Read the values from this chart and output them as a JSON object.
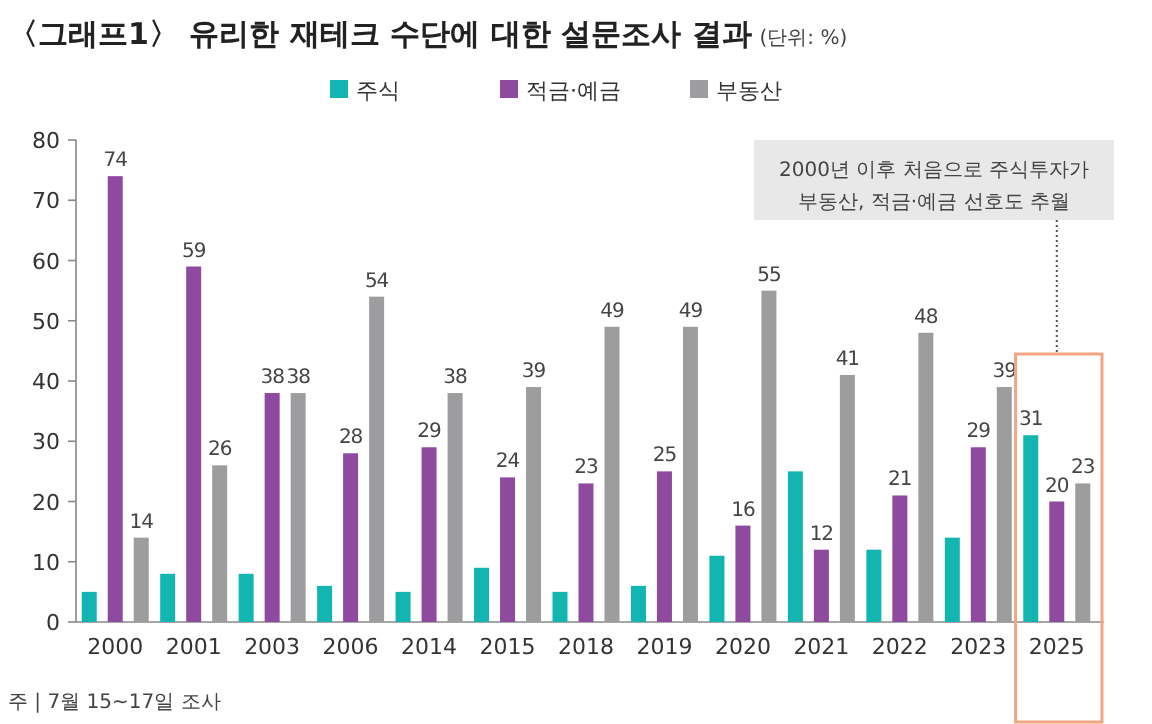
{
  "chart_data": {
    "type": "bar",
    "title": "〈그래프1〉 유리한 재테크 수단에 대한 설문조사 결과",
    "subtitle": "(단위: %)",
    "categories": [
      "2000",
      "2001",
      "2003",
      "2006",
      "2014",
      "2015",
      "2018",
      "2019",
      "2020",
      "2021",
      "2022",
      "2023",
      "2025"
    ],
    "series": [
      {
        "name": "주식",
        "color": "#13b5b1",
        "values": [
          5,
          8,
          8,
          6,
          5,
          9,
          5,
          6,
          11,
          25,
          12,
          14,
          31
        ],
        "value_labels": [
          null,
          null,
          null,
          null,
          null,
          null,
          null,
          null,
          null,
          null,
          null,
          null,
          "31"
        ]
      },
      {
        "name": "적금·예금",
        "color": "#8e4a9e",
        "values": [
          74,
          59,
          38,
          28,
          29,
          24,
          23,
          25,
          16,
          12,
          21,
          29,
          20
        ],
        "value_labels": [
          "74",
          "59",
          "38",
          "28",
          "29",
          "24",
          "23",
          "25",
          "16",
          "12",
          "21",
          "29",
          "20"
        ]
      },
      {
        "name": "부동산",
        "color": "#9d9d9f",
        "values": [
          14,
          26,
          38,
          54,
          38,
          39,
          49,
          49,
          55,
          41,
          48,
          39,
          23
        ],
        "value_labels": [
          "14",
          "26",
          "38",
          "54",
          "38",
          "39",
          "49",
          "49",
          "55",
          "41",
          "48",
          "39",
          "23"
        ]
      }
    ],
    "ylim": [
      0,
      80
    ],
    "yticks": [
      0,
      10,
      20,
      30,
      40,
      50,
      60,
      70,
      80
    ],
    "grid": false,
    "legend": "top",
    "annotations": [
      "2000년 이후 처음으로 주식투자가 부동산, 적금·예금 선호도 추월",
      "주 | 7월 15~17일 조사"
    ]
  }
}
